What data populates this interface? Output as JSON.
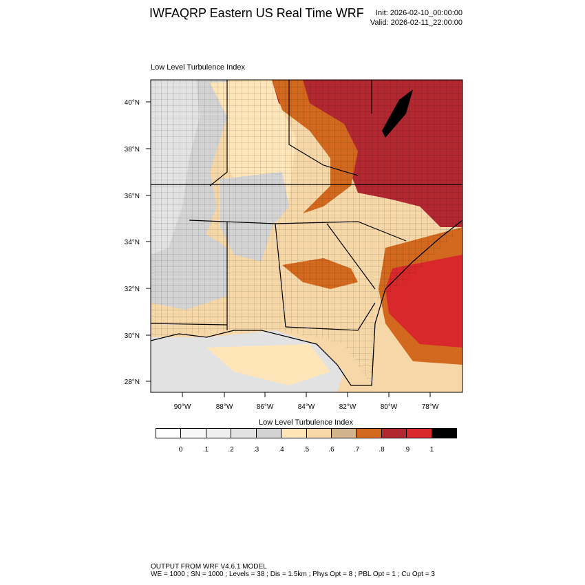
{
  "header": {
    "title": "IWFAQRP Eastern US Real Time WRF",
    "init": "Init: 2026-02-10_00:00:00",
    "valid": "Valid: 2026-02-11_22:00:00"
  },
  "panel": {
    "title": "Low Level Turbulence Index"
  },
  "axes": {
    "lat_labels": [
      "40°N",
      "38°N",
      "36°N",
      "34°N",
      "32°N",
      "30°N",
      "28°N"
    ],
    "lon_labels": [
      "90°W",
      "88°W",
      "86°W",
      "84°W",
      "82°W",
      "80°W",
      "78°W"
    ]
  },
  "colorbar": {
    "title": "Low Level Turbulence Index",
    "colors": [
      "#ffffff",
      "#f7f7f7",
      "#efefef",
      "#e2e2e2",
      "#d3d3d3",
      "#ffe5b8",
      "#f5d7a8",
      "#d2b48c",
      "#d2691e",
      "#b22830",
      "#d8282c",
      "#000000"
    ],
    "labels": [
      "0",
      ".1",
      ".2",
      ".3",
      ".4",
      ".5",
      ".6",
      ".7",
      ".8",
      ".9",
      "1"
    ]
  },
  "footer": {
    "line1": "OUTPUT FROM WRF V4.6.1 MODEL",
    "line2": "WE = 1000 ; SN = 1000 ; Levels = 38 ; Dis = 1.5km ; Phys Opt = 8 ; PBL Opt = 1 ; Cu Opt = 3"
  }
}
